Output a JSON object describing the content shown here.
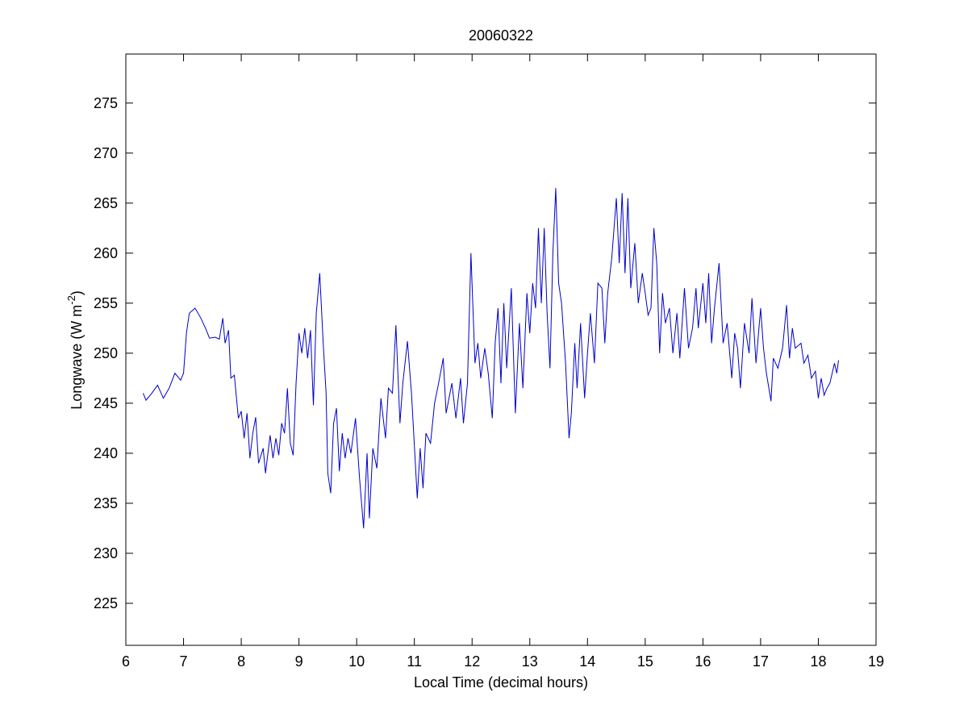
{
  "chart_data": {
    "type": "line",
    "title": "20060322",
    "xlabel": "Local Time (decimal hours)",
    "ylabel": {
      "main": "Longwave (W m",
      "sup": "-2",
      "end": ")"
    },
    "color": "#0000cc",
    "x": [
      6.3,
      6.35,
      6.45,
      6.55,
      6.65,
      6.75,
      6.85,
      6.95,
      7.0,
      7.05,
      7.1,
      7.2,
      7.3,
      7.38,
      7.45,
      7.55,
      7.62,
      7.68,
      7.72,
      7.78,
      7.82,
      7.88,
      7.95,
      8.0,
      8.05,
      8.1,
      8.15,
      8.2,
      8.25,
      8.3,
      8.38,
      8.42,
      8.5,
      8.55,
      8.6,
      8.65,
      8.7,
      8.75,
      8.8,
      8.85,
      8.9,
      8.95,
      9.0,
      9.05,
      9.1,
      9.15,
      9.2,
      9.25,
      9.3,
      9.36,
      9.42,
      9.47,
      9.5,
      9.55,
      9.6,
      9.65,
      9.7,
      9.75,
      9.8,
      9.85,
      9.9,
      9.98,
      10.05,
      10.12,
      10.18,
      10.22,
      10.28,
      10.35,
      10.42,
      10.5,
      10.55,
      10.62,
      10.68,
      10.75,
      10.8,
      10.88,
      10.95,
      11.05,
      11.1,
      11.15,
      11.2,
      11.28,
      11.35,
      11.42,
      11.5,
      11.55,
      11.65,
      11.72,
      11.8,
      11.85,
      11.92,
      11.98,
      12.05,
      12.1,
      12.15,
      12.22,
      12.28,
      12.35,
      12.4,
      12.45,
      12.5,
      12.55,
      12.6,
      12.68,
      12.75,
      12.82,
      12.88,
      12.95,
      13.0,
      13.05,
      13.1,
      13.15,
      13.2,
      13.25,
      13.3,
      13.35,
      13.4,
      13.45,
      13.5,
      13.55,
      13.62,
      13.68,
      13.72,
      13.78,
      13.82,
      13.88,
      13.95,
      14.0,
      14.05,
      14.12,
      14.18,
      14.25,
      14.3,
      14.35,
      14.42,
      14.5,
      14.55,
      14.6,
      14.65,
      14.7,
      14.75,
      14.82,
      14.88,
      14.95,
      15.0,
      15.05,
      15.1,
      15.15,
      15.2,
      15.25,
      15.3,
      15.35,
      15.42,
      15.48,
      15.55,
      15.6,
      15.68,
      15.75,
      15.82,
      15.88,
      15.92,
      16.0,
      16.05,
      16.1,
      16.15,
      16.2,
      16.28,
      16.35,
      16.42,
      16.5,
      16.55,
      16.6,
      16.65,
      16.72,
      16.8,
      16.85,
      16.92,
      17.0,
      17.05,
      17.1,
      17.18,
      17.22,
      17.3,
      17.38,
      17.45,
      17.5,
      17.55,
      17.6,
      17.7,
      17.75,
      17.82,
      17.88,
      17.95,
      18.0,
      18.05,
      18.1,
      18.15,
      18.2,
      18.28,
      18.32,
      18.35
    ],
    "values": [
      246,
      245.3,
      246,
      246.8,
      245.5,
      246.5,
      248,
      247.3,
      248,
      252,
      254,
      254.5,
      253.5,
      252.5,
      251.5,
      251.6,
      251.4,
      253.5,
      251,
      252.3,
      247.5,
      247.8,
      243.5,
      244.2,
      241.5,
      244,
      239.5,
      242,
      243.6,
      239,
      240.5,
      238,
      241.8,
      239.5,
      241.5,
      239.8,
      243,
      242,
      246.5,
      241,
      239.8,
      247,
      252,
      250,
      252.5,
      249.5,
      252.3,
      244.8,
      254,
      258,
      251,
      246,
      238,
      236,
      243,
      244.5,
      238.2,
      242,
      239.5,
      241.5,
      240,
      243.5,
      237.5,
      232.5,
      240,
      233.5,
      240.5,
      238.5,
      245.5,
      241.5,
      246.5,
      246,
      252.8,
      243,
      247,
      251.2,
      246,
      235.5,
      240.5,
      236.5,
      242,
      241,
      245,
      247,
      249.5,
      244,
      247,
      243.5,
      247.5,
      243,
      247,
      260,
      249,
      251,
      247.5,
      250.5,
      248,
      243.5,
      251,
      254.5,
      247,
      255,
      248.5,
      256.5,
      244,
      253,
      246.5,
      256,
      252,
      257,
      254.5,
      262.5,
      255,
      262.5,
      254,
      248.5,
      260,
      266.5,
      257,
      255,
      249,
      241.5,
      244,
      251,
      246.5,
      253,
      245.5,
      250,
      254,
      249,
      257,
      256.5,
      251,
      256,
      259.5,
      265.5,
      259,
      266,
      258,
      265.5,
      256.5,
      261,
      255,
      258,
      256,
      253.8,
      254.5,
      262.5,
      259,
      250,
      256,
      253,
      254.5,
      250,
      254,
      249.5,
      256.5,
      250.5,
      252.5,
      256.5,
      252.5,
      257,
      253,
      258,
      251,
      254.5,
      259,
      251,
      253,
      247.5,
      252,
      250.5,
      246.5,
      253,
      250,
      255.5,
      249,
      254.5,
      250.5,
      248,
      245.2,
      249.5,
      248.5,
      250.5,
      254.8,
      249.5,
      252.5,
      250.5,
      251,
      249,
      249.8,
      247.5,
      248.2,
      245.5,
      247.5,
      245.8,
      246.5,
      247,
      249,
      248,
      249.3
    ],
    "xlim": [
      6,
      19
    ],
    "xticks": [
      6,
      7,
      8,
      9,
      10,
      11,
      12,
      13,
      14,
      15,
      16,
      17,
      18,
      19
    ],
    "ylim": [
      220.8,
      279.9
    ],
    "yticks": [
      225,
      230,
      235,
      240,
      245,
      250,
      255,
      260,
      265,
      270,
      275
    ],
    "grid": false
  }
}
